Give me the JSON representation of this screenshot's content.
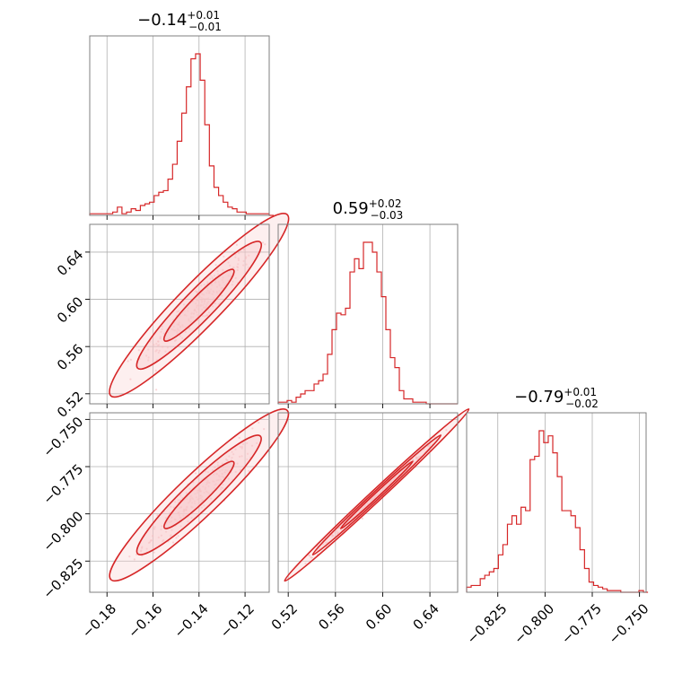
{
  "chart_data": {
    "type": "corner",
    "colors": {
      "main": "#d62728",
      "fill": "#f7c9cb",
      "points": "#f4a3a8",
      "grid": "#b0b0b0",
      "frame": "#7f7f7f"
    },
    "grid": true,
    "parameters": [
      {
        "title": {
          "main": "−0.14",
          "plus": "+0.01",
          "minus": "−0.01"
        },
        "range": [
          -0.1875,
          -0.1095
        ],
        "ticks": [
          -0.18,
          -0.16,
          -0.14,
          -0.12
        ],
        "tick_labels": [
          "−0.18",
          "−0.16",
          "−0.14",
          "−0.12"
        ],
        "hist": {
          "bin_start": -0.1875,
          "bin_width": 0.002,
          "counts": [
            1,
            1,
            1,
            1,
            1,
            2,
            5,
            1,
            2,
            4,
            3,
            6,
            7,
            8,
            12,
            14,
            15,
            22,
            31,
            45,
            62,
            78,
            95,
            98,
            82,
            55,
            30,
            17,
            12,
            8,
            5,
            4,
            2,
            2,
            1,
            1,
            1,
            1,
            1,
            0
          ]
        }
      },
      {
        "title": {
          "main": "0.59",
          "plus": "+0.02",
          "minus": "−0.03"
        },
        "range": [
          0.5115,
          0.6635
        ],
        "ticks": [
          0.52,
          0.56,
          0.6,
          0.64
        ],
        "tick_labels": [
          "0.52",
          "0.56",
          "0.60",
          "0.64"
        ],
        "hist": {
          "bin_start": 0.5115,
          "bin_width": 0.0038,
          "counts": [
            1,
            1,
            2,
            1,
            4,
            6,
            8,
            8,
            12,
            14,
            18,
            30,
            45,
            55,
            54,
            58,
            80,
            88,
            82,
            98,
            98,
            92,
            80,
            65,
            45,
            28,
            22,
            8,
            3,
            3,
            1,
            1,
            1,
            0,
            0,
            0,
            0,
            0,
            0,
            0
          ]
        }
      },
      {
        "title": {
          "main": "−0.79",
          "plus": "+0.01",
          "minus": "−0.02"
        },
        "range": [
          -0.8415,
          -0.7465
        ],
        "ticks": [
          -0.825,
          -0.8,
          -0.775,
          -0.75
        ],
        "tick_labels": [
          "−0.825",
          "−0.800",
          "−0.775",
          "−0.750"
        ],
        "hist": {
          "bin_start": -0.8415,
          "bin_width": 0.0024,
          "counts": [
            3,
            4,
            4,
            8,
            10,
            12,
            14,
            22,
            28,
            40,
            45,
            40,
            50,
            48,
            78,
            80,
            95,
            88,
            92,
            82,
            68,
            48,
            48,
            45,
            38,
            25,
            14,
            6,
            4,
            3,
            2,
            1,
            1,
            1,
            0,
            0,
            0,
            0,
            1,
            0
          ]
        }
      }
    ],
    "contour_levels": [
      "0.5-sigma",
      "1-sigma",
      "1.5-sigma"
    ],
    "correlations": {
      "0-1": 0.93,
      "0-2": 0.93,
      "1-2": 0.995
    }
  }
}
